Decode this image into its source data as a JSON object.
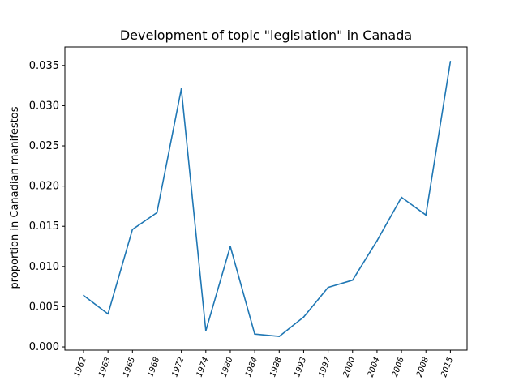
{
  "chart_data": {
    "type": "line",
    "title": "Development of topic \"legislation\" in Canada",
    "xlabel": "",
    "ylabel": "proportion in Canadian manifestos",
    "categories": [
      "1962",
      "1963",
      "1965",
      "1968",
      "1972",
      "1974",
      "1980",
      "1984",
      "1988",
      "1993",
      "1997",
      "2000",
      "2004",
      "2006",
      "2008",
      "2015"
    ],
    "series": [
      {
        "values": [
          0.0064,
          0.0041,
          0.0146,
          0.0167,
          0.0321,
          0.002,
          0.0125,
          0.0016,
          0.0013,
          0.0037,
          0.0074,
          0.0083,
          0.0132,
          0.0186,
          0.0164,
          0.0355
        ],
        "color": "#1f77b4"
      }
    ],
    "ylim": [
      -0.0004,
      0.0373
    ],
    "yticks": [
      0.0,
      0.005,
      0.01,
      0.015,
      0.02,
      0.025,
      0.03,
      0.035
    ],
    "ytick_labels": [
      "0.000",
      "0.005",
      "0.010",
      "0.015",
      "0.020",
      "0.025",
      "0.030",
      "0.035"
    ],
    "grid": false,
    "legend": "none"
  }
}
